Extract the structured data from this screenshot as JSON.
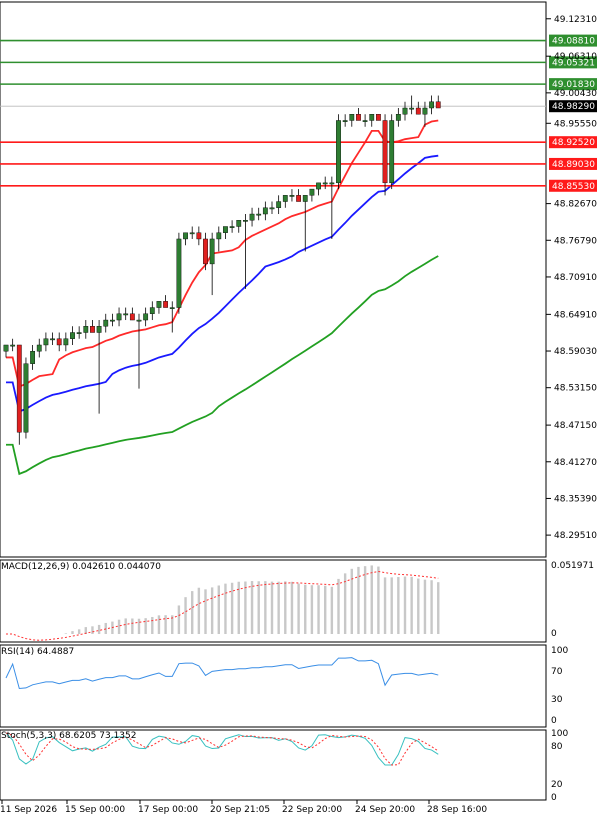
{
  "colors": {
    "bull": "#2e7d32",
    "bear": "#e02020",
    "resistance": "#2f8f2f",
    "support": "#ff1a1a",
    "ma_fast": "#ff2a2a",
    "ma_mid": "#1a1aff",
    "ma_slow": "#22a022",
    "macd_hist": "#c8c8c8",
    "macd_signal": "#ff3030",
    "rsi": "#3a8ee6",
    "stoch_main": "#38c0c0",
    "stoch_signal": "#ff3030",
    "current": "#000000"
  },
  "price_axis": {
    "ticks": [
      "49.12310",
      "49.06310",
      "49.00430",
      "48.95550",
      "48.82670",
      "48.76790",
      "48.70910",
      "48.64910",
      "48.59030",
      "48.53150",
      "48.47150",
      "48.41270",
      "48.35390",
      "48.29510"
    ],
    "min": 48.26,
    "max": 49.15
  },
  "resistance_levels": [
    {
      "value": 49.0881,
      "label": "49.08810"
    },
    {
      "value": 49.0532,
      "label": "49.05321"
    },
    {
      "value": 49.0183,
      "label": "49.01830"
    }
  ],
  "support_levels": [
    {
      "value": 48.9252,
      "label": "48.92520"
    },
    {
      "value": 48.8903,
      "label": "48.89030"
    },
    {
      "value": 48.8553,
      "label": "48.85530"
    }
  ],
  "current_price": {
    "value": 48.9829,
    "label": "48.98290"
  },
  "x_axis": {
    "labels": [
      "11 Sep 2026",
      "15 Sep 00:00",
      "17 Sep 00:00",
      "20 Sep 21:05",
      "22 Sep 20:00",
      "24 Sep 20:00",
      "28 Sep 16:00"
    ]
  },
  "macd": {
    "title": "MACD(12,26,9) 0.042610 0.044070",
    "ticks": [
      "0.051971",
      "0"
    ]
  },
  "rsi": {
    "title": "RSI(14) 64.4887",
    "ticks": [
      "100",
      "70",
      "30",
      "0"
    ]
  },
  "stoch": {
    "title": "Stoch(5,3,3) 68.6205 73.1352",
    "ticks": [
      "100",
      "80",
      "20",
      "0"
    ]
  },
  "chart_data": {
    "type": "candlestick",
    "candles": [
      [
        48.59,
        48.6,
        48.58,
        48.6
      ],
      [
        48.6,
        48.61,
        48.59,
        48.6
      ],
      [
        48.6,
        48.6,
        48.44,
        48.46
      ],
      [
        48.46,
        48.58,
        48.45,
        48.57
      ],
      [
        48.57,
        48.6,
        48.56,
        48.59
      ],
      [
        48.59,
        48.61,
        48.58,
        48.6
      ],
      [
        48.6,
        48.62,
        48.59,
        48.61
      ],
      [
        48.61,
        48.62,
        48.6,
        48.61
      ],
      [
        48.61,
        48.62,
        48.59,
        48.6
      ],
      [
        48.6,
        48.62,
        48.59,
        48.61
      ],
      [
        48.61,
        48.63,
        48.6,
        48.62
      ],
      [
        48.62,
        48.63,
        48.61,
        48.62
      ],
      [
        48.62,
        48.64,
        48.61,
        48.63
      ],
      [
        48.63,
        48.64,
        48.62,
        48.62
      ],
      [
        48.62,
        48.64,
        48.49,
        48.63
      ],
      [
        48.63,
        48.65,
        48.62,
        48.64
      ],
      [
        48.64,
        48.65,
        48.63,
        48.64
      ],
      [
        48.64,
        48.66,
        48.63,
        48.65
      ],
      [
        48.65,
        48.66,
        48.64,
        48.65
      ],
      [
        48.65,
        48.66,
        48.64,
        48.64
      ],
      [
        48.64,
        48.65,
        48.53,
        48.64
      ],
      [
        48.64,
        48.66,
        48.63,
        48.65
      ],
      [
        48.65,
        48.67,
        48.64,
        48.66
      ],
      [
        48.66,
        48.67,
        48.65,
        48.67
      ],
      [
        48.67,
        48.68,
        48.66,
        48.66
      ],
      [
        48.66,
        48.67,
        48.62,
        48.66
      ],
      [
        48.66,
        48.78,
        48.65,
        48.77
      ],
      [
        48.77,
        48.78,
        48.76,
        48.78
      ],
      [
        48.78,
        48.79,
        48.77,
        48.78
      ],
      [
        48.78,
        48.79,
        48.76,
        48.77
      ],
      [
        48.77,
        48.78,
        48.72,
        48.73
      ],
      [
        48.73,
        48.78,
        48.68,
        48.77
      ],
      [
        48.77,
        48.79,
        48.75,
        48.78
      ],
      [
        48.78,
        48.79,
        48.77,
        48.79
      ],
      [
        48.79,
        48.8,
        48.78,
        48.79
      ],
      [
        48.79,
        48.8,
        48.78,
        48.8
      ],
      [
        48.8,
        48.81,
        48.69,
        48.8
      ],
      [
        48.8,
        48.82,
        48.79,
        48.81
      ],
      [
        48.81,
        48.82,
        48.8,
        48.81
      ],
      [
        48.81,
        48.83,
        48.8,
        48.82
      ],
      [
        48.82,
        48.83,
        48.81,
        48.82
      ],
      [
        48.82,
        48.84,
        48.81,
        48.83
      ],
      [
        48.83,
        48.84,
        48.82,
        48.84
      ],
      [
        48.84,
        48.85,
        48.83,
        48.84
      ],
      [
        48.84,
        48.85,
        48.83,
        48.83
      ],
      [
        48.83,
        48.84,
        48.75,
        48.84
      ],
      [
        48.84,
        48.85,
        48.83,
        48.85
      ],
      [
        48.85,
        48.86,
        48.84,
        48.86
      ],
      [
        48.86,
        48.87,
        48.85,
        48.86
      ],
      [
        48.86,
        48.87,
        48.77,
        48.86
      ],
      [
        48.86,
        48.97,
        48.85,
        48.96
      ],
      [
        48.96,
        48.97,
        48.95,
        48.96
      ],
      [
        48.96,
        48.97,
        48.95,
        48.97
      ],
      [
        48.97,
        48.98,
        48.96,
        48.96
      ],
      [
        48.96,
        48.97,
        48.95,
        48.96
      ],
      [
        48.96,
        48.97,
        48.95,
        48.97
      ],
      [
        48.97,
        48.97,
        48.96,
        48.96
      ],
      [
        48.96,
        48.97,
        48.84,
        48.86
      ],
      [
        48.86,
        48.97,
        48.85,
        48.96
      ],
      [
        48.96,
        48.98,
        48.95,
        48.97
      ],
      [
        48.97,
        48.99,
        48.96,
        48.98
      ],
      [
        48.98,
        49.0,
        48.97,
        48.98
      ],
      [
        48.98,
        48.99,
        48.97,
        48.97
      ],
      [
        48.97,
        48.99,
        48.95,
        48.98
      ],
      [
        48.98,
        49.0,
        48.97,
        48.99
      ],
      [
        48.99,
        49.0,
        48.98,
        48.98
      ]
    ]
  }
}
